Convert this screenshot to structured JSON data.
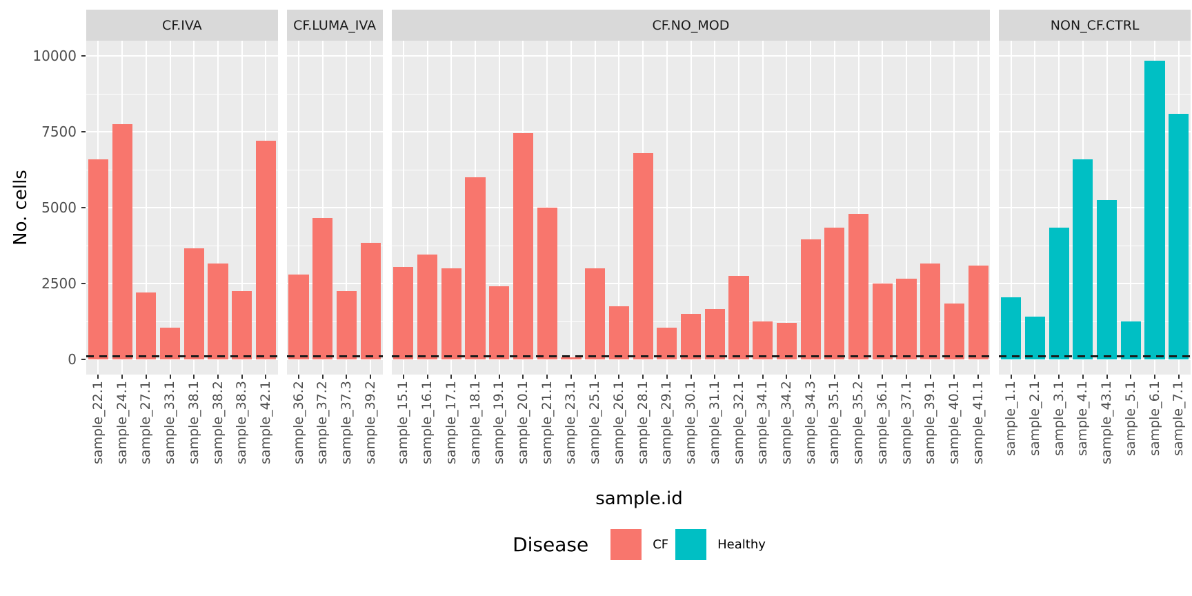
{
  "chart_data": {
    "type": "bar",
    "title": "",
    "xlabel": "sample.id",
    "ylabel": "No. cells",
    "ylim": [
      -500,
      10500
    ],
    "yticks": [
      0,
      2500,
      5000,
      7500,
      10000
    ],
    "grid": "white major and minor horizontal lines plus vertical line at each bar center, on gray panel",
    "legend_position": "bottom",
    "legend": {
      "title": "Disease",
      "entries": [
        {
          "label": "CF",
          "color": "#F8766D"
        },
        {
          "label": "Healthy",
          "color": "#00BFC4"
        }
      ]
    },
    "hline": {
      "value": 100,
      "style": "dashed",
      "color": "#1A1A1A"
    },
    "facets": [
      {
        "label": "CF.IVA",
        "group": "CF",
        "samples": [
          "sample_22.1",
          "sample_24.1",
          "sample_27.1",
          "sample_33.1",
          "sample_38.1",
          "sample_38.2",
          "sample_38.3",
          "sample_42.1"
        ],
        "values": [
          6600,
          7750,
          2200,
          1050,
          3650,
          3150,
          2250,
          7200
        ]
      },
      {
        "label": "CF.LUMA_IVA",
        "group": "CF",
        "samples": [
          "sample_36.2",
          "sample_37.2",
          "sample_37.3",
          "sample_39.2"
        ],
        "values": [
          2800,
          4650,
          2250,
          3850
        ]
      },
      {
        "label": "CF.NO_MOD",
        "group": "CF",
        "samples": [
          "sample_15.1",
          "sample_16.1",
          "sample_17.1",
          "sample_18.1",
          "sample_19.1",
          "sample_20.1",
          "sample_21.1",
          "sample_23.1",
          "sample_25.1",
          "sample_26.1",
          "sample_28.1",
          "sample_29.1",
          "sample_30.1",
          "sample_31.1",
          "sample_32.1",
          "sample_34.1",
          "sample_34.2",
          "sample_34.3",
          "sample_35.1",
          "sample_35.2",
          "sample_36.1",
          "sample_37.1",
          "sample_39.1",
          "sample_40.1",
          "sample_41.1"
        ],
        "values": [
          3050,
          3450,
          3000,
          6000,
          2400,
          7450,
          5000,
          70,
          3000,
          1750,
          6800,
          1050,
          1500,
          1650,
          2750,
          1250,
          1200,
          3950,
          4350,
          4800,
          2500,
          2650,
          3150,
          1850,
          3100
        ]
      },
      {
        "label": "NON_CF.CTRL",
        "group": "Healthy",
        "samples": [
          "sample_1.1",
          "sample_2.1",
          "sample_3.1",
          "sample_4.1",
          "sample_43.1",
          "sample_5.1",
          "sample_6.1",
          "sample_7.1"
        ],
        "values": [
          2050,
          1400,
          4350,
          6600,
          5250,
          1250,
          9850,
          8100
        ]
      }
    ]
  },
  "theme": {
    "panel_bg": "#EBEBEB",
    "strip_bg": "#D9D9D9",
    "grid_color": "#FFFFFF",
    "tick_label_color": "#4D4D4D",
    "axis_title_color": "#000000",
    "bar_colors": {
      "CF": "#F8766D",
      "Healthy": "#00BFC4"
    }
  }
}
